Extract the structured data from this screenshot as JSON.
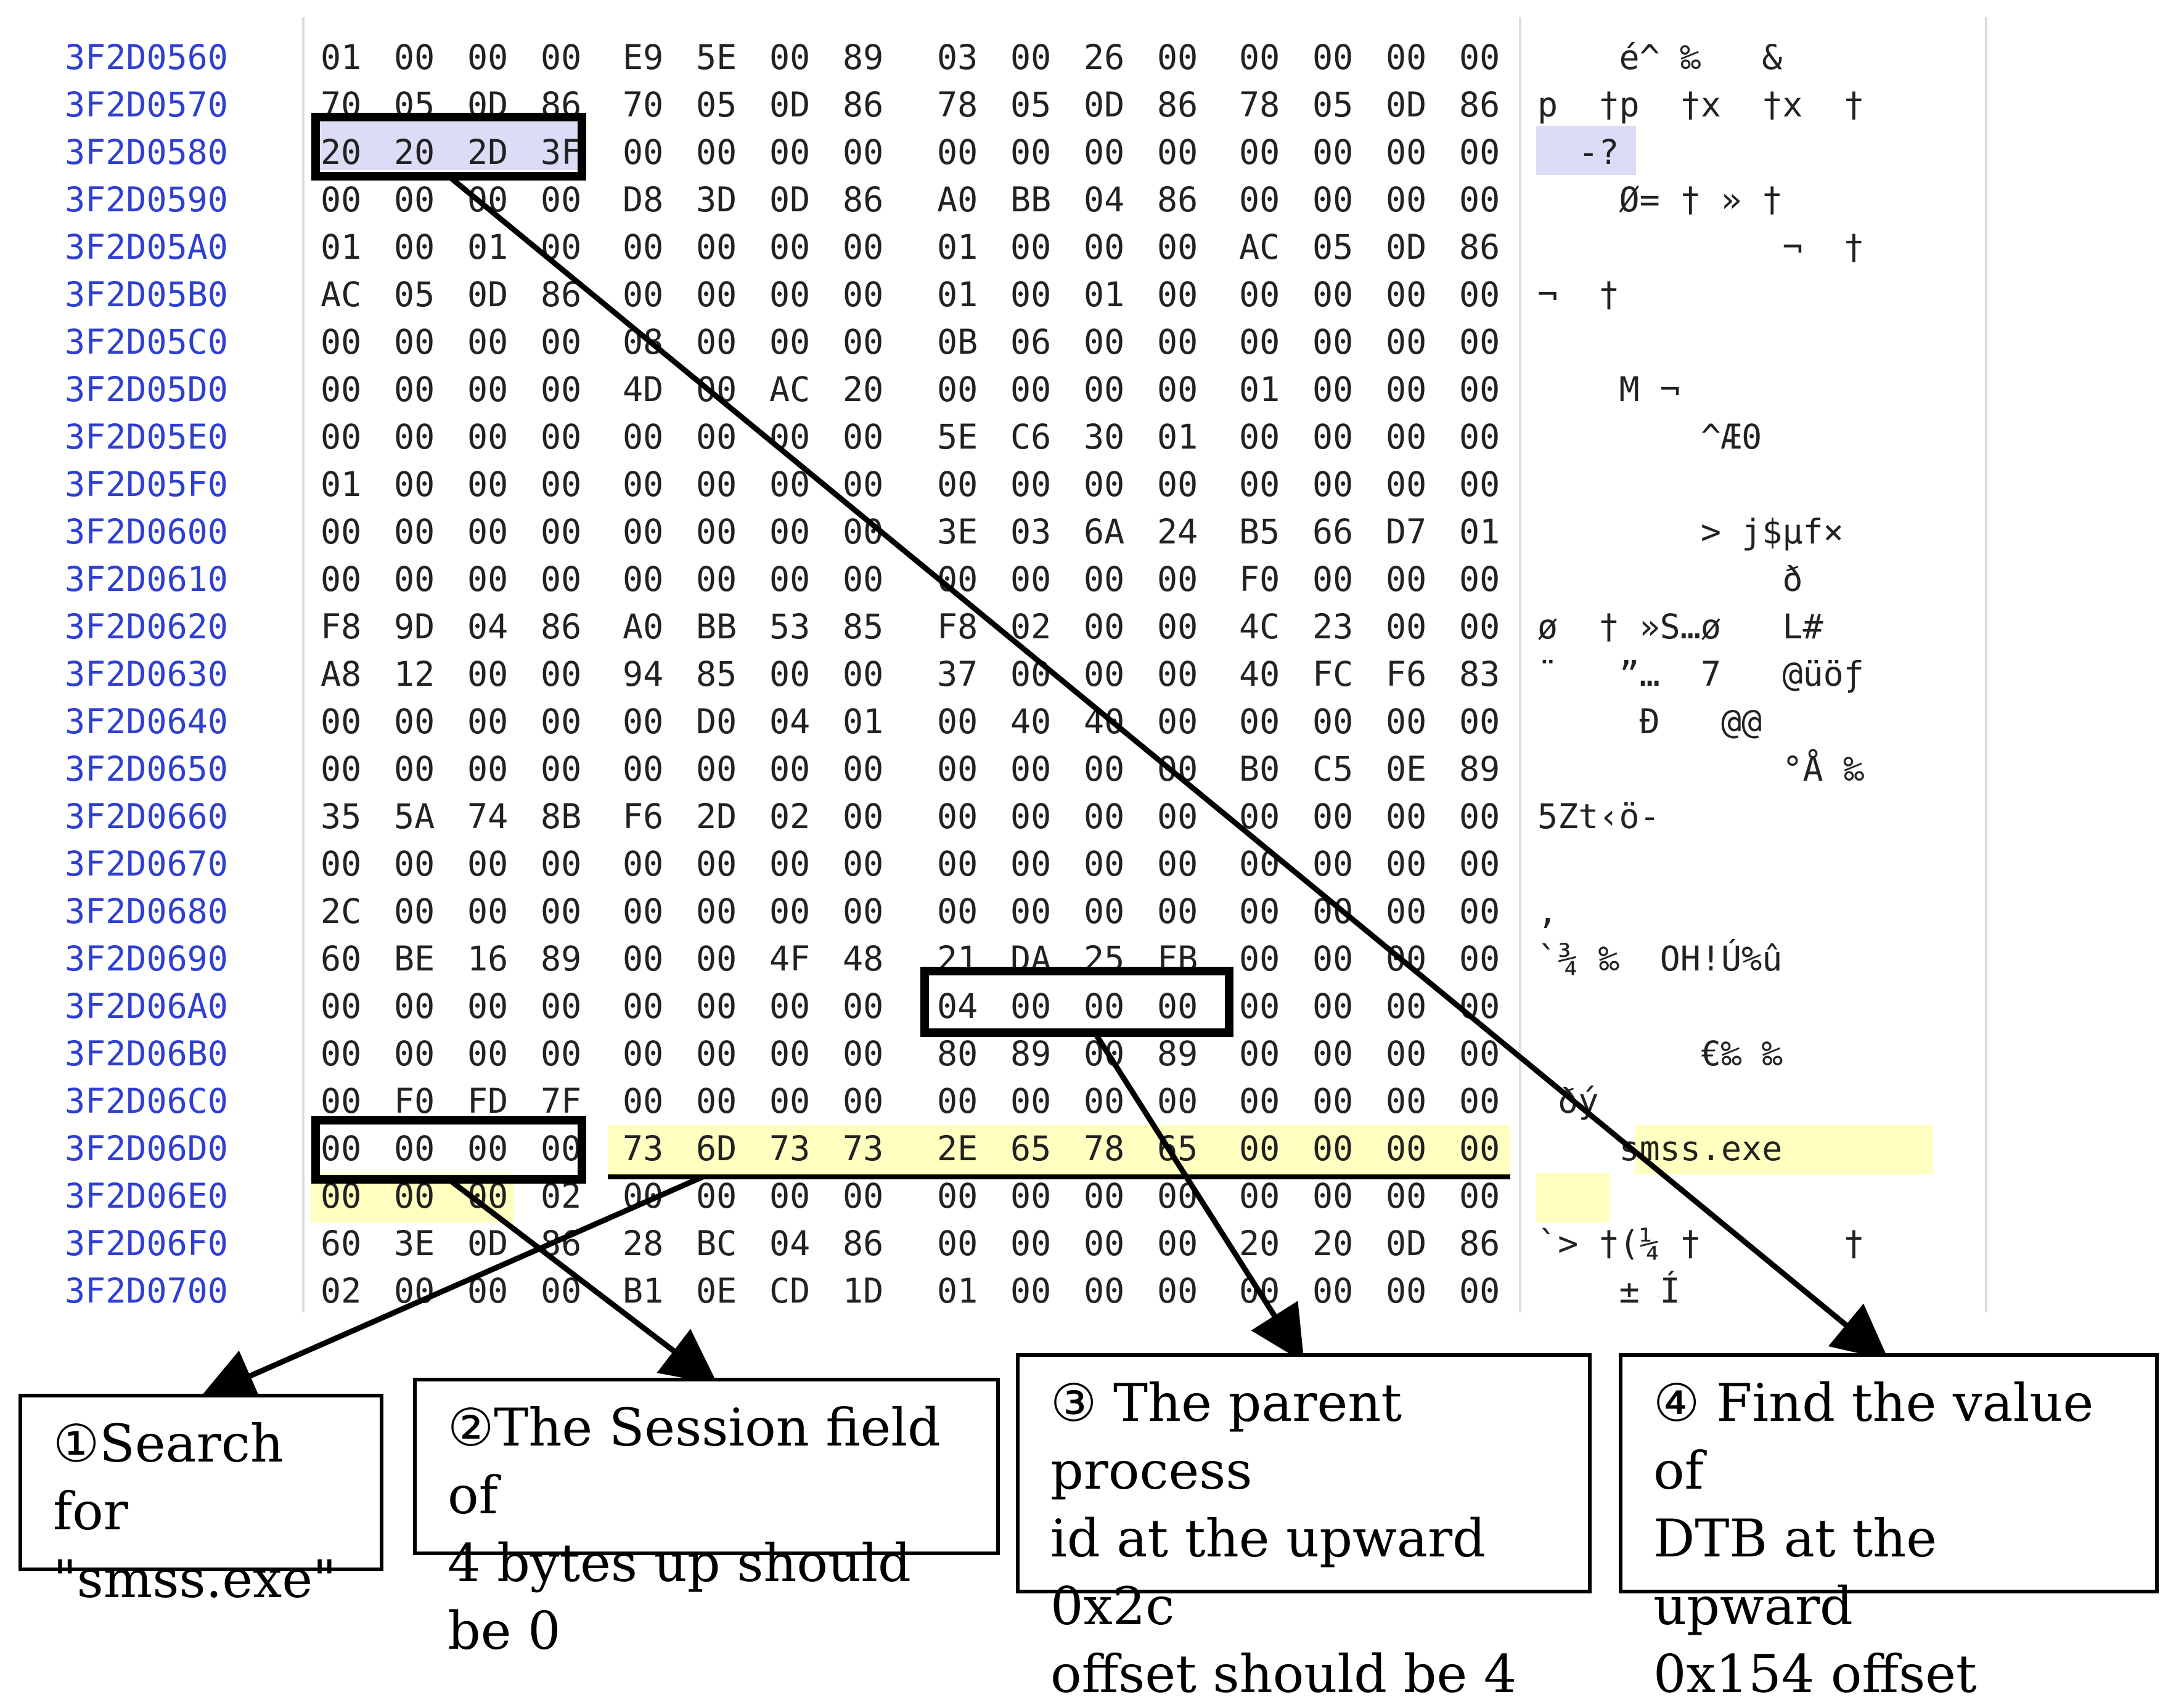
{
  "hex_view": {
    "rows": [
      {
        "addr": "3F2D0560",
        "bytes": [
          "01",
          "00",
          "00",
          "00",
          "E9",
          "5E",
          "00",
          "89",
          "03",
          "00",
          "26",
          "00",
          "00",
          "00",
          "00",
          "00"
        ],
        "ascii": "    é^ ‰   &     "
      },
      {
        "addr": "3F2D0570",
        "bytes": [
          "70",
          "05",
          "0D",
          "86",
          "70",
          "05",
          "0D",
          "86",
          "78",
          "05",
          "0D",
          "86",
          "78",
          "05",
          "0D",
          "86"
        ],
        "ascii": "p  †p  †x  †x  †"
      },
      {
        "addr": "3F2D0580",
        "bytes": [
          "20",
          "20",
          "2D",
          "3F",
          "00",
          "00",
          "00",
          "00",
          "00",
          "00",
          "00",
          "00",
          "00",
          "00",
          "00",
          "00"
        ],
        "ascii": "  -?            "
      },
      {
        "addr": "3F2D0590",
        "bytes": [
          "00",
          "00",
          "00",
          "00",
          "D8",
          "3D",
          "0D",
          "86",
          "A0",
          "BB",
          "04",
          "86",
          "00",
          "00",
          "00",
          "00"
        ],
        "ascii": "    Ø= † » †    "
      },
      {
        "addr": "3F2D05A0",
        "bytes": [
          "01",
          "00",
          "01",
          "00",
          "00",
          "00",
          "00",
          "00",
          "01",
          "00",
          "00",
          "00",
          "AC",
          "05",
          "0D",
          "86"
        ],
        "ascii": "            ¬  †"
      },
      {
        "addr": "3F2D05B0",
        "bytes": [
          "AC",
          "05",
          "0D",
          "86",
          "00",
          "00",
          "00",
          "00",
          "01",
          "00",
          "01",
          "00",
          "00",
          "00",
          "00",
          "00"
        ],
        "ascii": "¬  †            "
      },
      {
        "addr": "3F2D05C0",
        "bytes": [
          "00",
          "00",
          "00",
          "00",
          "08",
          "00",
          "00",
          "00",
          "0B",
          "06",
          "00",
          "00",
          "00",
          "00",
          "00",
          "00"
        ],
        "ascii": "                "
      },
      {
        "addr": "3F2D05D0",
        "bytes": [
          "00",
          "00",
          "00",
          "00",
          "4D",
          "00",
          "AC",
          "20",
          "00",
          "00",
          "00",
          "00",
          "01",
          "00",
          "00",
          "00"
        ],
        "ascii": "    M ¬         "
      },
      {
        "addr": "3F2D05E0",
        "bytes": [
          "00",
          "00",
          "00",
          "00",
          "00",
          "00",
          "00",
          "00",
          "5E",
          "C6",
          "30",
          "01",
          "00",
          "00",
          "00",
          "00"
        ],
        "ascii": "        ^Æ0     "
      },
      {
        "addr": "3F2D05F0",
        "bytes": [
          "01",
          "00",
          "00",
          "00",
          "00",
          "00",
          "00",
          "00",
          "00",
          "00",
          "00",
          "00",
          "00",
          "00",
          "00",
          "00"
        ],
        "ascii": "                "
      },
      {
        "addr": "3F2D0600",
        "bytes": [
          "00",
          "00",
          "00",
          "00",
          "00",
          "00",
          "00",
          "00",
          "3E",
          "03",
          "6A",
          "24",
          "B5",
          "66",
          "D7",
          "01"
        ],
        "ascii": "        > j$µf× "
      },
      {
        "addr": "3F2D0610",
        "bytes": [
          "00",
          "00",
          "00",
          "00",
          "00",
          "00",
          "00",
          "00",
          "00",
          "00",
          "00",
          "00",
          "F0",
          "00",
          "00",
          "00"
        ],
        "ascii": "            ð   "
      },
      {
        "addr": "3F2D0620",
        "bytes": [
          "F8",
          "9D",
          "04",
          "86",
          "A0",
          "BB",
          "53",
          "85",
          "F8",
          "02",
          "00",
          "00",
          "4C",
          "23",
          "00",
          "00"
        ],
        "ascii": "ø  † »S…ø   L#  "
      },
      {
        "addr": "3F2D0630",
        "bytes": [
          "A8",
          "12",
          "00",
          "00",
          "94",
          "85",
          "00",
          "00",
          "37",
          "00",
          "00",
          "00",
          "40",
          "FC",
          "F6",
          "83"
        ],
        "ascii": "¨   ”…  7   @üöƒ"
      },
      {
        "addr": "3F2D0640",
        "bytes": [
          "00",
          "00",
          "00",
          "00",
          "00",
          "D0",
          "04",
          "01",
          "00",
          "40",
          "40",
          "00",
          "00",
          "00",
          "00",
          "00"
        ],
        "ascii": "     Ð   @@     "
      },
      {
        "addr": "3F2D0650",
        "bytes": [
          "00",
          "00",
          "00",
          "00",
          "00",
          "00",
          "00",
          "00",
          "00",
          "00",
          "00",
          "00",
          "B0",
          "C5",
          "0E",
          "89"
        ],
        "ascii": "            °Å ‰"
      },
      {
        "addr": "3F2D0660",
        "bytes": [
          "35",
          "5A",
          "74",
          "8B",
          "F6",
          "2D",
          "02",
          "00",
          "00",
          "00",
          "00",
          "00",
          "00",
          "00",
          "00",
          "00"
        ],
        "ascii": "5Zt‹ö-          "
      },
      {
        "addr": "3F2D0670",
        "bytes": [
          "00",
          "00",
          "00",
          "00",
          "00",
          "00",
          "00",
          "00",
          "00",
          "00",
          "00",
          "00",
          "00",
          "00",
          "00",
          "00"
        ],
        "ascii": "                "
      },
      {
        "addr": "3F2D0680",
        "bytes": [
          "2C",
          "00",
          "00",
          "00",
          "00",
          "00",
          "00",
          "00",
          "00",
          "00",
          "00",
          "00",
          "00",
          "00",
          "00",
          "00"
        ],
        "ascii": ",               "
      },
      {
        "addr": "3F2D0690",
        "bytes": [
          "60",
          "BE",
          "16",
          "89",
          "00",
          "00",
          "4F",
          "48",
          "21",
          "DA",
          "25",
          "FB",
          "00",
          "00",
          "00",
          "00"
        ],
        "ascii": "`¾ ‰  OH!Ú%û    "
      },
      {
        "addr": "3F2D06A0",
        "bytes": [
          "00",
          "00",
          "00",
          "00",
          "00",
          "00",
          "00",
          "00",
          "04",
          "00",
          "00",
          "00",
          "00",
          "00",
          "00",
          "00"
        ],
        "ascii": "                "
      },
      {
        "addr": "3F2D06B0",
        "bytes": [
          "00",
          "00",
          "00",
          "00",
          "00",
          "00",
          "00",
          "00",
          "80",
          "89",
          "00",
          "89",
          "00",
          "00",
          "00",
          "00"
        ],
        "ascii": "        €‰ ‰    "
      },
      {
        "addr": "3F2D06C0",
        "bytes": [
          "00",
          "F0",
          "FD",
          "7F",
          "00",
          "00",
          "00",
          "00",
          "00",
          "00",
          "00",
          "00",
          "00",
          "00",
          "00",
          "00"
        ],
        "ascii": " ðý             "
      },
      {
        "addr": "3F2D06D0",
        "bytes": [
          "00",
          "00",
          "00",
          "00",
          "73",
          "6D",
          "73",
          "73",
          "2E",
          "65",
          "78",
          "65",
          "00",
          "00",
          "00",
          "00"
        ],
        "ascii": "    smss.exe    "
      },
      {
        "addr": "3F2D06E0",
        "bytes": [
          "00",
          "00",
          "00",
          "02",
          "00",
          "00",
          "00",
          "00",
          "00",
          "00",
          "00",
          "00",
          "00",
          "00",
          "00",
          "00"
        ],
        "ascii": "                "
      },
      {
        "addr": "3F2D06F0",
        "bytes": [
          "60",
          "3E",
          "0D",
          "86",
          "28",
          "BC",
          "04",
          "86",
          "00",
          "00",
          "00",
          "00",
          "20",
          "20",
          "0D",
          "86"
        ],
        "ascii": "`> †(¼ †       †"
      },
      {
        "addr": "3F2D0700",
        "bytes": [
          "02",
          "00",
          "00",
          "00",
          "B1",
          "0E",
          "CD",
          "1D",
          "01",
          "00",
          "00",
          "00",
          "00",
          "00",
          "00",
          "00"
        ],
        "ascii": "    ± Í         "
      }
    ]
  },
  "callouts": [
    {
      "id": "search",
      "lines": [
        "①Search for",
        "\"smss.exe\""
      ]
    },
    {
      "id": "session",
      "lines": [
        "②The Session field of",
        "4 bytes up should be 0"
      ]
    },
    {
      "id": "parent",
      "lines": [
        "③ The parent process",
        "id at the upward 0x2c",
        "offset should be 4"
      ]
    },
    {
      "id": "dtb",
      "lines": [
        "④ Find the value of",
        "DTB at the upward",
        "0x154  offset"
      ]
    }
  ]
}
